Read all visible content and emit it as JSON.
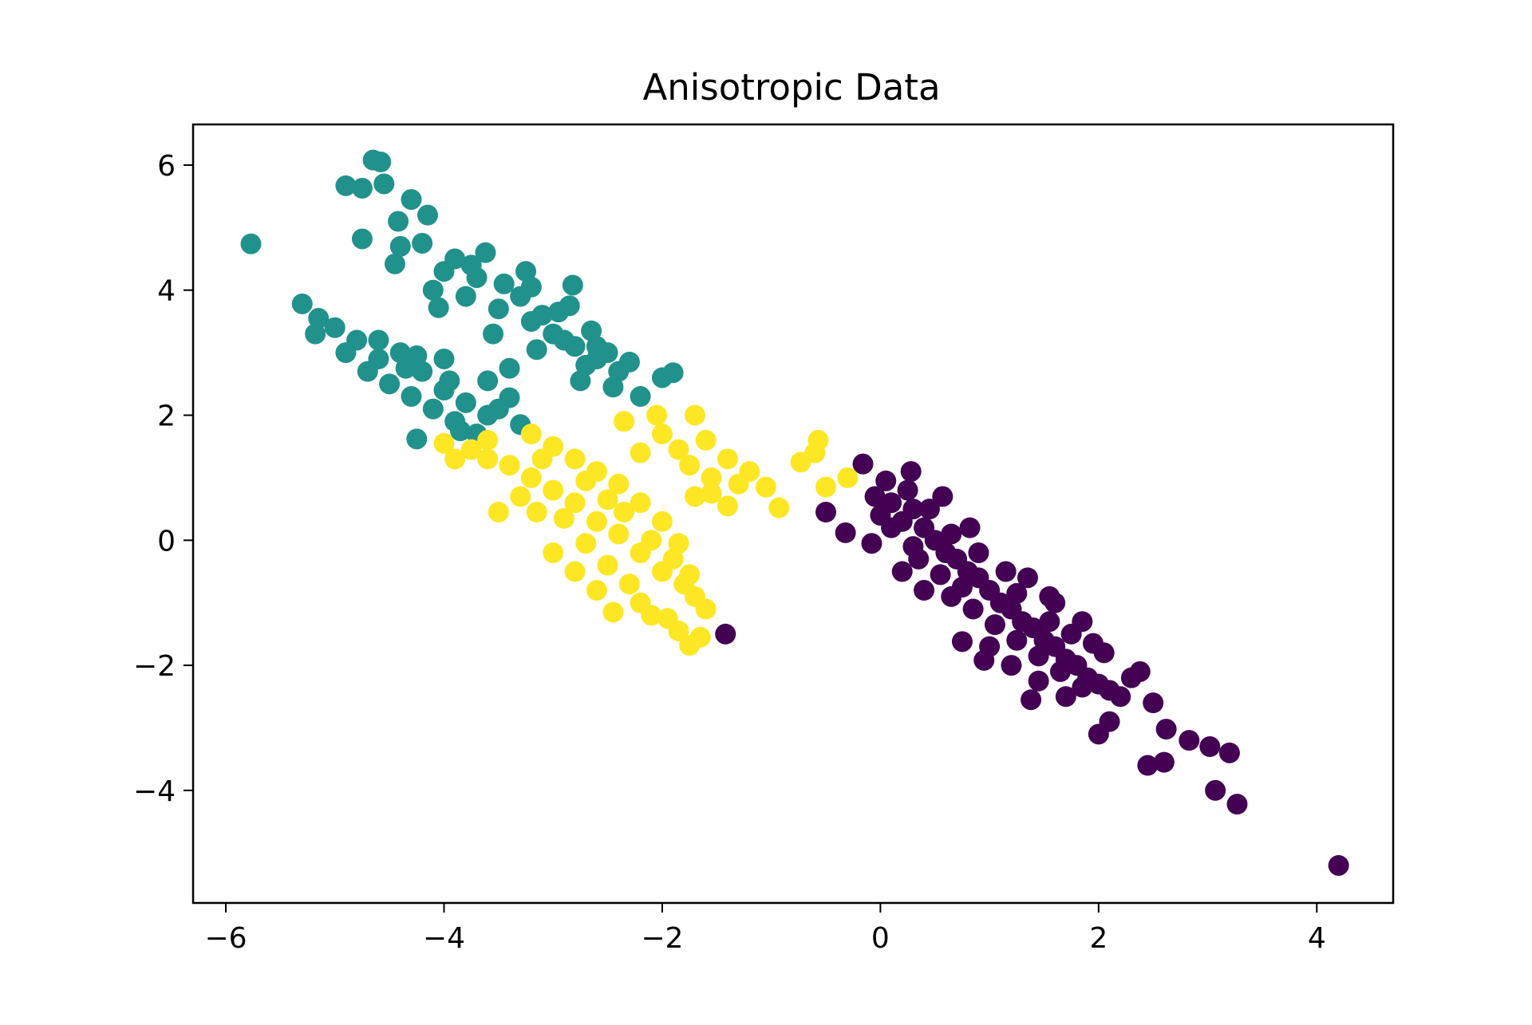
{
  "chart_data": {
    "type": "scatter",
    "title": "Anisotropic Data",
    "xlabel": "",
    "ylabel": "",
    "xlim": [
      -6.3,
      4.7
    ],
    "ylim": [
      -5.8,
      6.65
    ],
    "xticks": [
      -6,
      -4,
      -2,
      0,
      2,
      4
    ],
    "yticks": [
      -4,
      -2,
      0,
      2,
      4,
      6
    ],
    "xtick_labels": [
      "−6",
      "−4",
      "−2",
      "0",
      "2",
      "4"
    ],
    "ytick_labels": [
      "−4",
      "−2",
      "0",
      "2",
      "4",
      "6"
    ],
    "grid": false,
    "legend": "none",
    "series": [
      {
        "color": "#440154",
        "points": [
          [
            -0.16,
            1.22
          ],
          [
            0.05,
            0.95
          ],
          [
            0.28,
            1.1
          ],
          [
            0.57,
            0.7
          ],
          [
            0.82,
            0.2
          ],
          [
            -0.5,
            0.45
          ],
          [
            -0.32,
            0.12
          ],
          [
            -0.08,
            -0.05
          ],
          [
            0.2,
            -0.5
          ],
          [
            0.4,
            -0.8
          ],
          [
            0.75,
            -1.62
          ],
          [
            0.95,
            -1.92
          ],
          [
            1.38,
            -2.55
          ],
          [
            1.55,
            -0.9
          ],
          [
            1.75,
            -1.5
          ],
          [
            2.0,
            -3.1
          ],
          [
            2.1,
            -2.9
          ],
          [
            2.38,
            -2.1
          ],
          [
            2.5,
            -2.6
          ],
          [
            2.45,
            -3.6
          ],
          [
            2.6,
            -3.55
          ],
          [
            2.62,
            -3.02
          ],
          [
            2.83,
            -3.2
          ],
          [
            3.02,
            -3.3
          ],
          [
            3.2,
            -3.4
          ],
          [
            3.07,
            -4.0
          ],
          [
            3.27,
            -4.22
          ],
          [
            4.2,
            -5.2
          ],
          [
            -1.42,
            -1.5
          ],
          [
            0.1,
            0.6
          ],
          [
            0.2,
            0.3
          ],
          [
            0.3,
            0.5
          ],
          [
            0.4,
            0.2
          ],
          [
            0.5,
            0.0
          ],
          [
            0.6,
            -0.2
          ],
          [
            0.7,
            -0.3
          ],
          [
            0.8,
            -0.5
          ],
          [
            0.9,
            -0.6
          ],
          [
            1.0,
            -0.8
          ],
          [
            1.1,
            -1.0
          ],
          [
            1.2,
            -1.1
          ],
          [
            1.3,
            -1.3
          ],
          [
            1.4,
            -1.4
          ],
          [
            1.5,
            -1.6
          ],
          [
            1.6,
            -1.7
          ],
          [
            1.7,
            -1.9
          ],
          [
            1.8,
            -2.0
          ],
          [
            1.9,
            -2.2
          ],
          [
            2.0,
            -2.3
          ],
          [
            2.1,
            -2.4
          ],
          [
            2.2,
            -2.5
          ],
          [
            0.35,
            -0.3
          ],
          [
            0.55,
            -0.55
          ],
          [
            0.65,
            -0.9
          ],
          [
            0.85,
            -1.1
          ],
          [
            1.05,
            -1.35
          ],
          [
            1.25,
            -1.6
          ],
          [
            1.45,
            -1.85
          ],
          [
            1.65,
            -2.1
          ],
          [
            1.85,
            -2.35
          ],
          [
            0.0,
            0.4
          ],
          [
            0.45,
            0.5
          ],
          [
            0.65,
            0.1
          ],
          [
            0.9,
            -0.2
          ],
          [
            1.15,
            -0.5
          ],
          [
            1.35,
            -0.6
          ],
          [
            1.6,
            -1.0
          ],
          [
            1.85,
            -1.3
          ],
          [
            2.05,
            -1.8
          ],
          [
            2.3,
            -2.2
          ],
          [
            1.0,
            -1.7
          ],
          [
            1.2,
            -2.0
          ],
          [
            1.45,
            -2.25
          ],
          [
            1.7,
            -2.5
          ],
          [
            0.25,
            0.8
          ],
          [
            0.1,
            0.2
          ],
          [
            -0.05,
            0.7
          ],
          [
            0.3,
            -0.1
          ],
          [
            0.75,
            -0.75
          ],
          [
            1.25,
            -0.85
          ],
          [
            1.55,
            -1.3
          ],
          [
            1.95,
            -1.65
          ]
        ]
      },
      {
        "color": "#21918c",
        "points": [
          [
            -5.77,
            4.74
          ],
          [
            -5.3,
            3.78
          ],
          [
            -5.15,
            3.55
          ],
          [
            -5.18,
            3.3
          ],
          [
            -4.9,
            5.67
          ],
          [
            -4.75,
            5.63
          ],
          [
            -4.65,
            6.08
          ],
          [
            -4.58,
            6.05
          ],
          [
            -4.55,
            5.7
          ],
          [
            -4.75,
            4.82
          ],
          [
            -4.3,
            5.45
          ],
          [
            -4.42,
            5.1
          ],
          [
            -4.15,
            5.2
          ],
          [
            -4.45,
            4.42
          ],
          [
            -4.4,
            4.7
          ],
          [
            -4.05,
            3.72
          ],
          [
            -3.62,
            4.6
          ],
          [
            -3.25,
            4.3
          ],
          [
            -2.82,
            4.08
          ],
          [
            -2.85,
            3.75
          ],
          [
            -2.0,
            2.6
          ],
          [
            -1.9,
            2.68
          ],
          [
            -2.2,
            2.3
          ],
          [
            -4.25,
            1.62
          ],
          [
            -3.6,
            2.55
          ],
          [
            -3.4,
            2.28
          ],
          [
            -3.4,
            2.75
          ],
          [
            -4.0,
            2.9
          ],
          [
            -4.9,
            3.0
          ],
          [
            -4.6,
            3.2
          ],
          [
            -4.1,
            4.0
          ],
          [
            -3.8,
            3.9
          ],
          [
            -3.5,
            3.7
          ],
          [
            -3.2,
            3.5
          ],
          [
            -3.0,
            3.3
          ],
          [
            -2.8,
            3.1
          ],
          [
            -2.6,
            2.9
          ],
          [
            -2.4,
            2.7
          ],
          [
            -3.9,
            4.5
          ],
          [
            -3.7,
            4.2
          ],
          [
            -3.3,
            3.9
          ],
          [
            -3.1,
            3.6
          ],
          [
            -2.9,
            3.2
          ],
          [
            -2.7,
            2.8
          ],
          [
            -2.5,
            3.0
          ],
          [
            -4.4,
            3.0
          ],
          [
            -4.2,
            2.7
          ],
          [
            -4.0,
            2.4
          ],
          [
            -3.8,
            2.2
          ],
          [
            -3.6,
            2.0
          ],
          [
            -4.5,
            2.5
          ],
          [
            -4.3,
            2.3
          ],
          [
            -4.1,
            2.1
          ],
          [
            -3.9,
            1.9
          ],
          [
            -3.7,
            1.7
          ],
          [
            -5.0,
            3.4
          ],
          [
            -4.8,
            3.2
          ],
          [
            -4.6,
            2.9
          ],
          [
            -4.35,
            2.75
          ],
          [
            -3.95,
            2.55
          ],
          [
            -3.5,
            2.1
          ],
          [
            -3.3,
            1.85
          ],
          [
            -3.55,
            3.3
          ],
          [
            -3.15,
            3.05
          ],
          [
            -2.75,
            2.55
          ],
          [
            -2.45,
            2.45
          ],
          [
            -2.3,
            2.85
          ],
          [
            -2.65,
            3.35
          ],
          [
            -2.95,
            3.65
          ],
          [
            -3.45,
            4.1
          ],
          [
            -3.75,
            4.4
          ],
          [
            -4.2,
            4.75
          ],
          [
            -4.0,
            4.3
          ],
          [
            -3.2,
            4.05
          ],
          [
            -2.6,
            3.1
          ],
          [
            -4.7,
            2.7
          ],
          [
            -4.25,
            2.95
          ],
          [
            -3.85,
            1.75
          ]
        ]
      },
      {
        "color": "#fde725",
        "points": [
          [
            -3.2,
            1.7
          ],
          [
            -3.0,
            1.5
          ],
          [
            -2.8,
            1.3
          ],
          [
            -2.6,
            1.1
          ],
          [
            -2.4,
            0.9
          ],
          [
            -2.2,
            0.6
          ],
          [
            -2.0,
            0.3
          ],
          [
            -1.9,
            -0.3
          ],
          [
            -1.75,
            -0.55
          ],
          [
            -1.7,
            -0.9
          ],
          [
            -1.6,
            -1.1
          ],
          [
            -1.65,
            -1.55
          ],
          [
            -1.75,
            -1.68
          ],
          [
            -1.95,
            -1.25
          ],
          [
            -2.2,
            -1.0
          ],
          [
            -2.45,
            -1.15
          ],
          [
            -2.6,
            -0.8
          ],
          [
            -2.8,
            -0.5
          ],
          [
            -3.0,
            -0.2
          ],
          [
            -3.15,
            0.45
          ],
          [
            -3.5,
            0.45
          ],
          [
            -3.9,
            1.3
          ],
          [
            -4.0,
            1.55
          ],
          [
            -3.6,
            1.6
          ],
          [
            -2.35,
            0.45
          ],
          [
            -2.1,
            0.0
          ],
          [
            -1.85,
            -0.05
          ],
          [
            -2.35,
            1.9
          ],
          [
            -2.05,
            2.0
          ],
          [
            -1.7,
            2.0
          ],
          [
            -1.6,
            1.6
          ],
          [
            -1.4,
            1.3
          ],
          [
            -1.2,
            1.1
          ],
          [
            -1.05,
            0.85
          ],
          [
            -0.93,
            0.52
          ],
          [
            -0.73,
            1.25
          ],
          [
            -0.6,
            1.4
          ],
          [
            -0.57,
            1.6
          ],
          [
            -0.5,
            0.85
          ],
          [
            -0.3,
            1.0
          ],
          [
            -1.7,
            0.7
          ],
          [
            -1.4,
            0.55
          ],
          [
            -1.55,
            1.0
          ],
          [
            -1.85,
            1.45
          ],
          [
            -2.0,
            1.7
          ],
          [
            -2.2,
            1.4
          ],
          [
            -3.4,
            1.2
          ],
          [
            -3.2,
            1.0
          ],
          [
            -3.0,
            0.8
          ],
          [
            -2.8,
            0.6
          ],
          [
            -2.6,
            0.3
          ],
          [
            -2.4,
            0.1
          ],
          [
            -2.2,
            -0.2
          ],
          [
            -2.0,
            -0.5
          ],
          [
            -1.8,
            -0.7
          ],
          [
            -3.6,
            1.3
          ],
          [
            -3.3,
            0.7
          ],
          [
            -2.9,
            0.35
          ],
          [
            -2.7,
            -0.05
          ],
          [
            -2.5,
            -0.4
          ],
          [
            -2.3,
            -0.7
          ],
          [
            -2.1,
            -1.2
          ],
          [
            -1.85,
            -1.45
          ],
          [
            -3.75,
            1.45
          ],
          [
            -3.1,
            1.3
          ],
          [
            -2.7,
            0.95
          ],
          [
            -2.5,
            0.65
          ],
          [
            -1.55,
            0.75
          ],
          [
            -1.3,
            0.9
          ],
          [
            -1.75,
            1.2
          ]
        ]
      }
    ]
  }
}
